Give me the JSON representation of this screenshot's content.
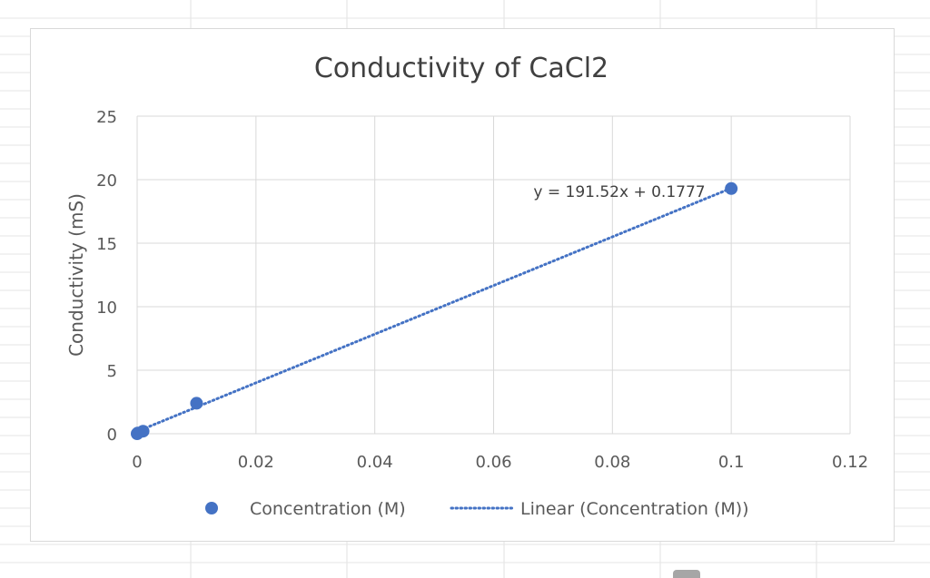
{
  "chart_data": {
    "type": "scatter",
    "title": "Conductivity of CaCl2",
    "xlabel": "",
    "ylabel": "Conductivity (mS)",
    "xlim": [
      0,
      0.12
    ],
    "ylim": [
      0,
      25
    ],
    "x_ticks": [
      0,
      0.02,
      0.04,
      0.06,
      0.08,
      0.1,
      0.12
    ],
    "x_tick_labels": [
      "0",
      "0.02",
      "0.04",
      "0.06",
      "0.08",
      "0.1",
      "0.12"
    ],
    "y_ticks": [
      0,
      5,
      10,
      15,
      20,
      25
    ],
    "y_tick_labels": [
      "0",
      "5",
      "10",
      "15",
      "20",
      "25"
    ],
    "grid": true,
    "legend_position": "bottom",
    "series": [
      {
        "name": "Concentration (M)",
        "color": "#4472c4",
        "points": [
          {
            "x": 0,
            "y": 0.0
          },
          {
            "x": 0.0001,
            "y": 0.05
          },
          {
            "x": 0.001,
            "y": 0.2
          },
          {
            "x": 0.01,
            "y": 2.4
          },
          {
            "x": 0.1,
            "y": 19.3
          }
        ]
      }
    ],
    "trendline": {
      "name": "Linear (Concentration (M))",
      "type": "linear",
      "slope": 191.52,
      "intercept": 0.1777,
      "x_range": [
        0,
        0.1
      ],
      "equation": "y = 191.52x + 0.1777",
      "color": "#4472c4"
    }
  }
}
